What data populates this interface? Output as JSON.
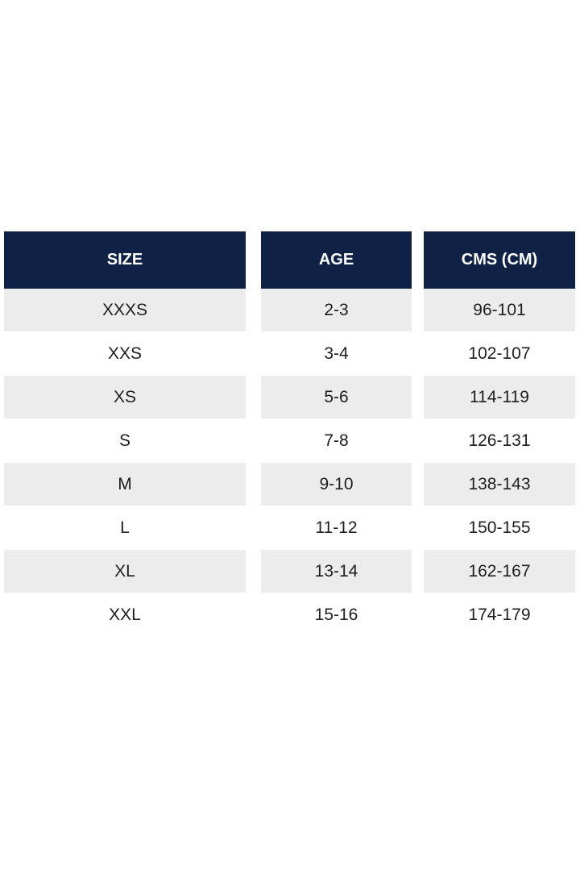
{
  "table": {
    "header": [
      "SIZE",
      "AGE",
      "CMS (CM)"
    ],
    "rows": [
      [
        "XXXS",
        "2-3",
        "96-101"
      ],
      [
        "XXS",
        "3-4",
        "102-107"
      ],
      [
        "XS",
        "5-6",
        "114-119"
      ],
      [
        "S",
        "7-8",
        "126-131"
      ],
      [
        "M",
        "9-10",
        "138-143"
      ],
      [
        "L",
        "11-12",
        "150-155"
      ],
      [
        "XL",
        "13-14",
        "162-167"
      ],
      [
        "XXL",
        "15-16",
        "174-179"
      ]
    ]
  }
}
